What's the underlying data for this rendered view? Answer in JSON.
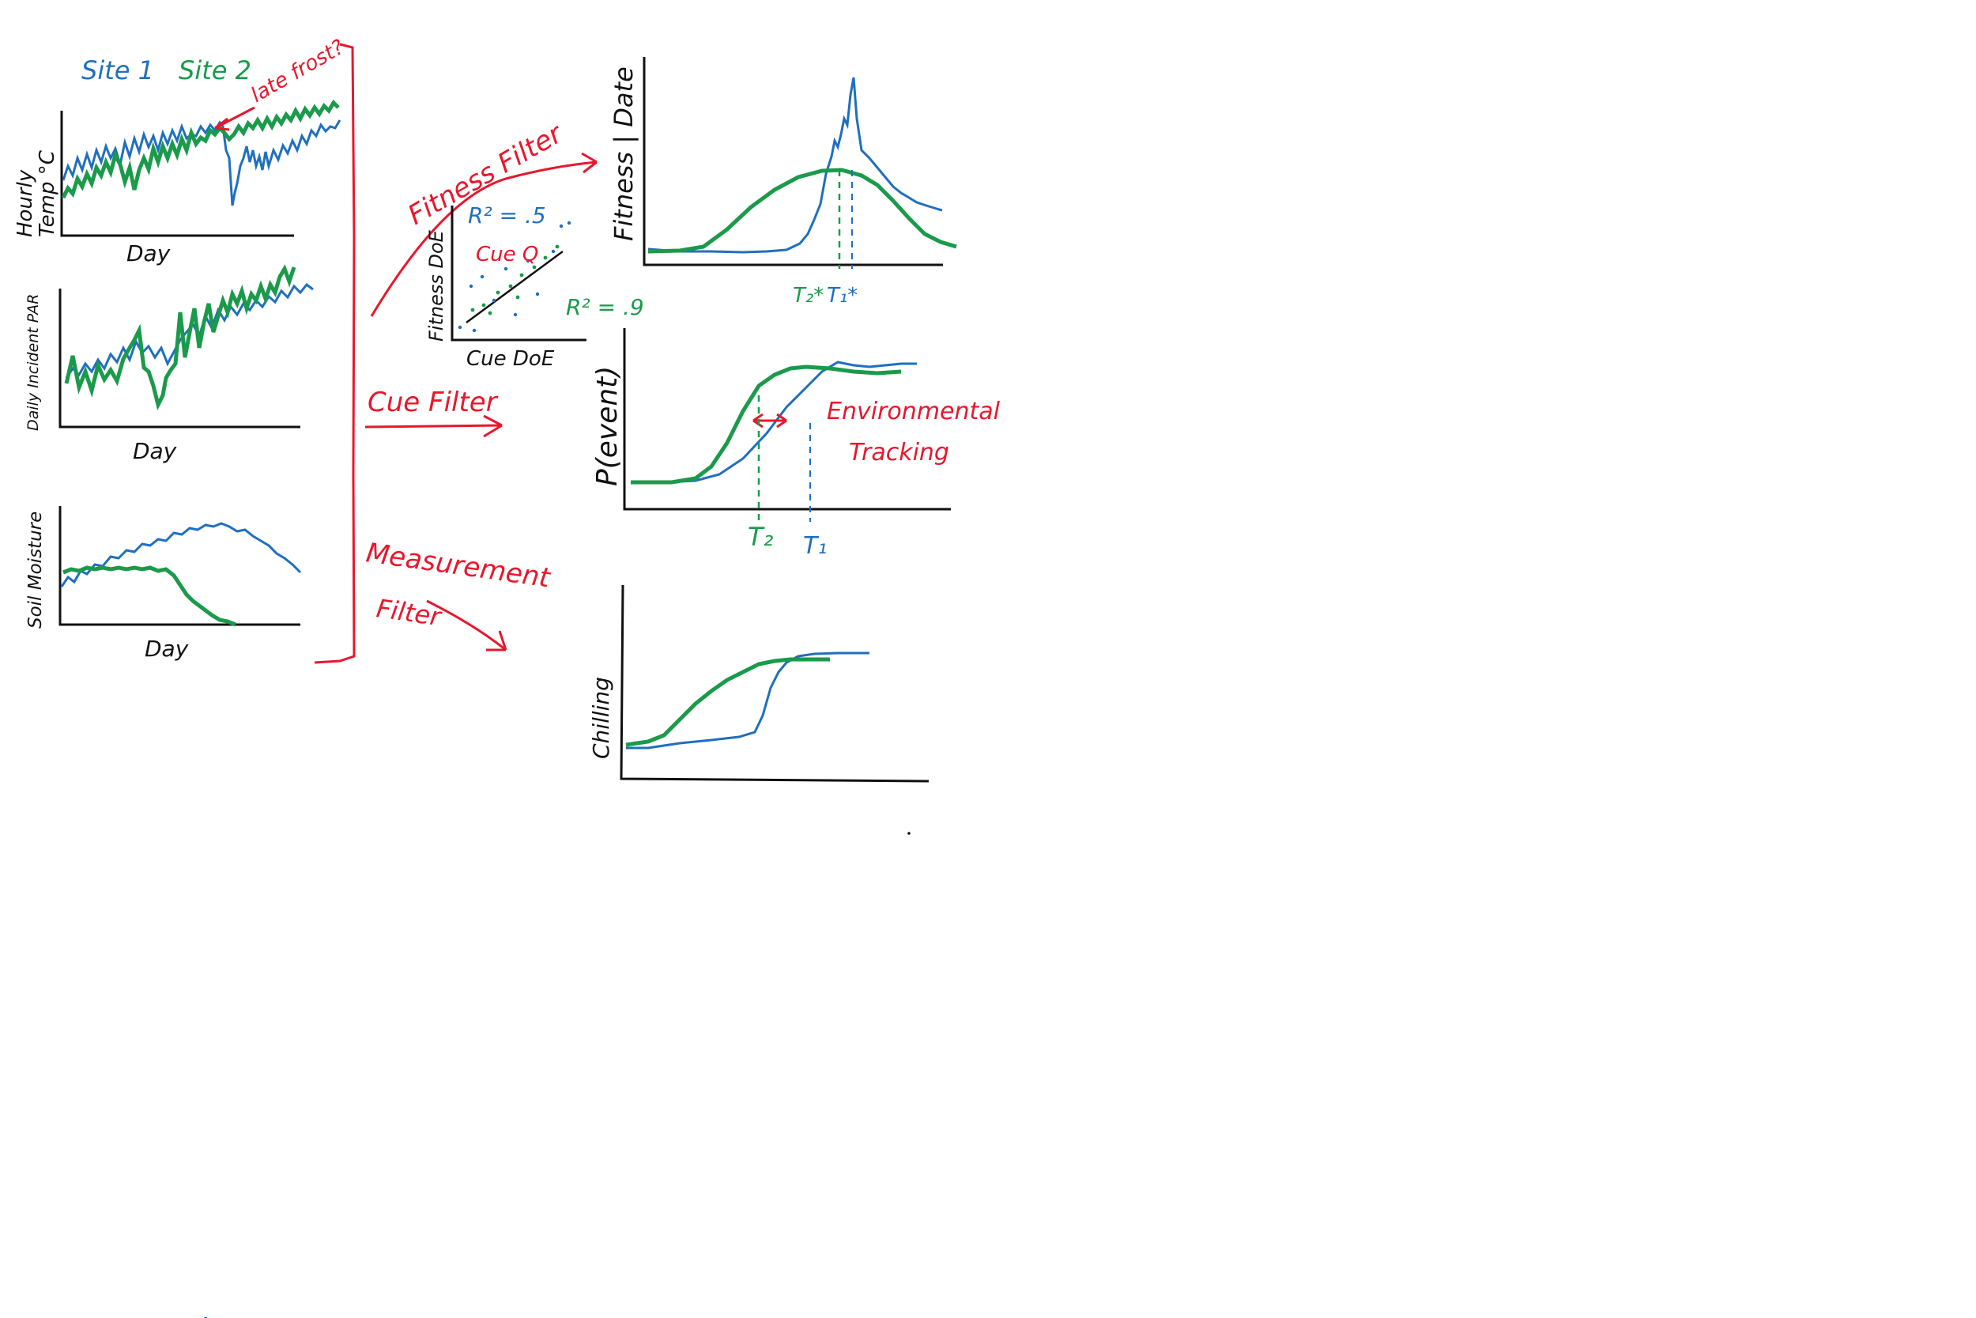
{
  "colors": {
    "site1": "#1f6fbf",
    "site2": "#1a9a4a",
    "annotation": "#e8172d",
    "axis": "#111111"
  },
  "legend": {
    "site1": "Site 1",
    "site2": "Site 2"
  },
  "panels": {
    "temp": {
      "ylabel_1": "Hourly",
      "ylabel_2": "Temp °C",
      "xlabel": "Day",
      "annotation": "late frost?"
    },
    "par": {
      "ylabel": "Daily Incident PAR",
      "xlabel": "Day"
    },
    "soil": {
      "ylabel": "Soil Moisture",
      "xlabel": "Day"
    }
  },
  "filters": {
    "fitness": "Fitness Filter",
    "cue": "Cue Filter",
    "measurement_1": "Measurement",
    "measurement_2": "Filter"
  },
  "scatter": {
    "ylabel": "Fitness DoE",
    "xlabel": "Cue DoE",
    "r2_site1": "R² = .5",
    "r2_site2": "R² = .9",
    "cue_label": "Cue Q"
  },
  "fitness_panel": {
    "ylabel": "Fitness | Date",
    "t2_label": "T₂*",
    "t1_label": "T₁*"
  },
  "pevent_panel": {
    "ylabel": "P(event)",
    "t2_label": "T₂",
    "t1_label": "T₁",
    "annotation_1": "Environmental",
    "annotation_2": "Tracking"
  },
  "chilling_panel": {
    "ylabel": "Chilling"
  }
}
